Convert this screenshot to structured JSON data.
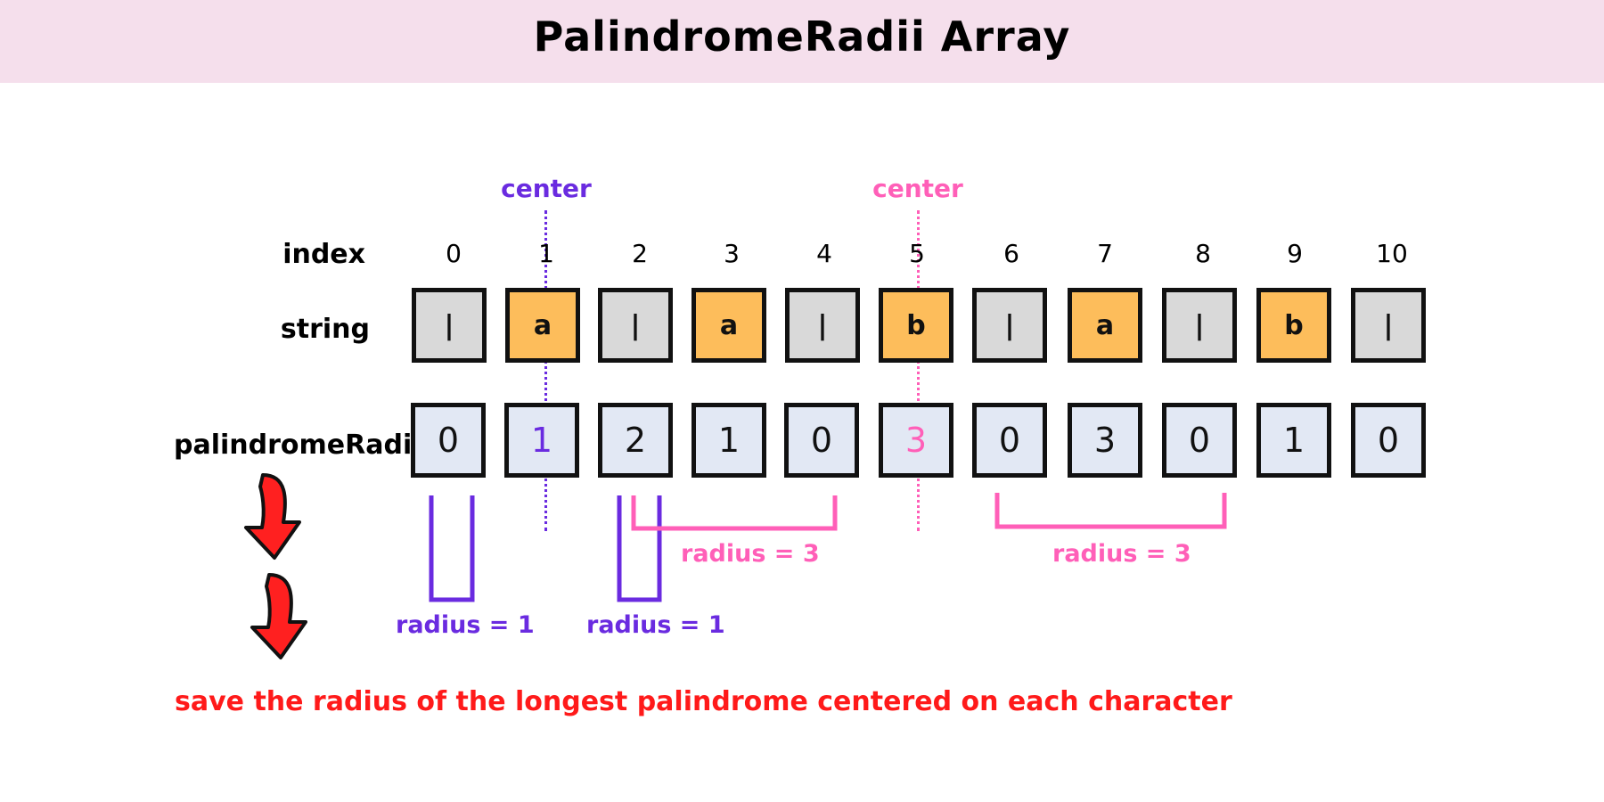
{
  "title": "PalindromeRadii Array",
  "labels": {
    "index": "index",
    "string": "string",
    "radii": "palindromeRadii"
  },
  "indices": [
    "0",
    "1",
    "2",
    "3",
    "4",
    "5",
    "6",
    "7",
    "8",
    "9",
    "10"
  ],
  "string_chars": [
    "|",
    "a",
    "|",
    "a",
    "|",
    "b",
    "|",
    "a",
    "|",
    "b",
    "|"
  ],
  "radii": [
    "0",
    "1",
    "2",
    "1",
    "0",
    "3",
    "0",
    "3",
    "0",
    "1",
    "0"
  ],
  "centers": {
    "first": {
      "label": "center",
      "index": 1,
      "color": "#6a2be0"
    },
    "second": {
      "label": "center",
      "index": 5,
      "color": "#ff5fb8"
    }
  },
  "annotations": {
    "radius_1_a": "radius = 1",
    "radius_1_b": "radius = 1",
    "radius_3_a": "radius = 3",
    "radius_3_b": "radius = 3"
  },
  "note": "save the radius of the longest palindrome centered on each character",
  "colors": {
    "header_bg": "#f5dfec",
    "separator_cell": "#d9d9d9",
    "letter_cell": "#fdbd5b",
    "radii_cell": "#e2e8f4",
    "purple": "#6a2be0",
    "pink": "#ff5fb8",
    "red": "#ff1a1a"
  }
}
